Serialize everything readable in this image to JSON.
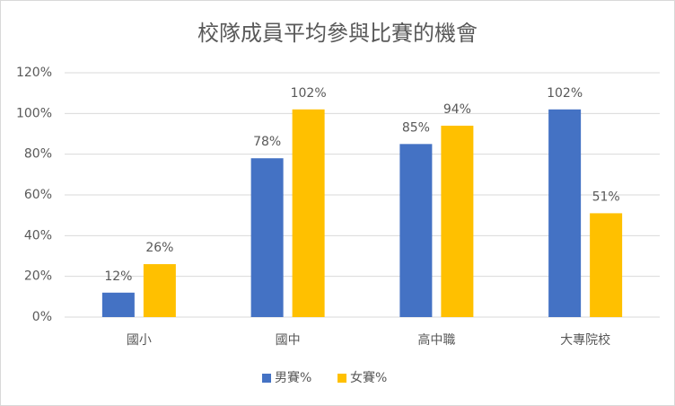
{
  "chart_data": {
    "type": "bar",
    "title": "校隊成員平均參與比賽的機會",
    "categories": [
      "國小",
      "國中",
      "高中職",
      "大專院校"
    ],
    "series": [
      {
        "name": "男賽%",
        "color": "#4472c4",
        "values": [
          12,
          78,
          85,
          102
        ],
        "value_labels": [
          "12%",
          "78%",
          "85%",
          "102%"
        ]
      },
      {
        "name": "女賽%",
        "color": "#ffc000",
        "values": [
          26,
          102,
          94,
          51
        ],
        "value_labels": [
          "26%",
          "102%",
          "94%",
          "51%"
        ]
      }
    ],
    "ylim": [
      0,
      120
    ],
    "yticks": [
      {
        "value": 0,
        "label": "0%"
      },
      {
        "value": 20,
        "label": "20%"
      },
      {
        "value": 40,
        "label": "40%"
      },
      {
        "value": 60,
        "label": "60%"
      },
      {
        "value": 80,
        "label": "80%"
      },
      {
        "value": 100,
        "label": "100%"
      },
      {
        "value": 120,
        "label": "120%"
      }
    ],
    "grid": true,
    "legend": "bottom"
  }
}
